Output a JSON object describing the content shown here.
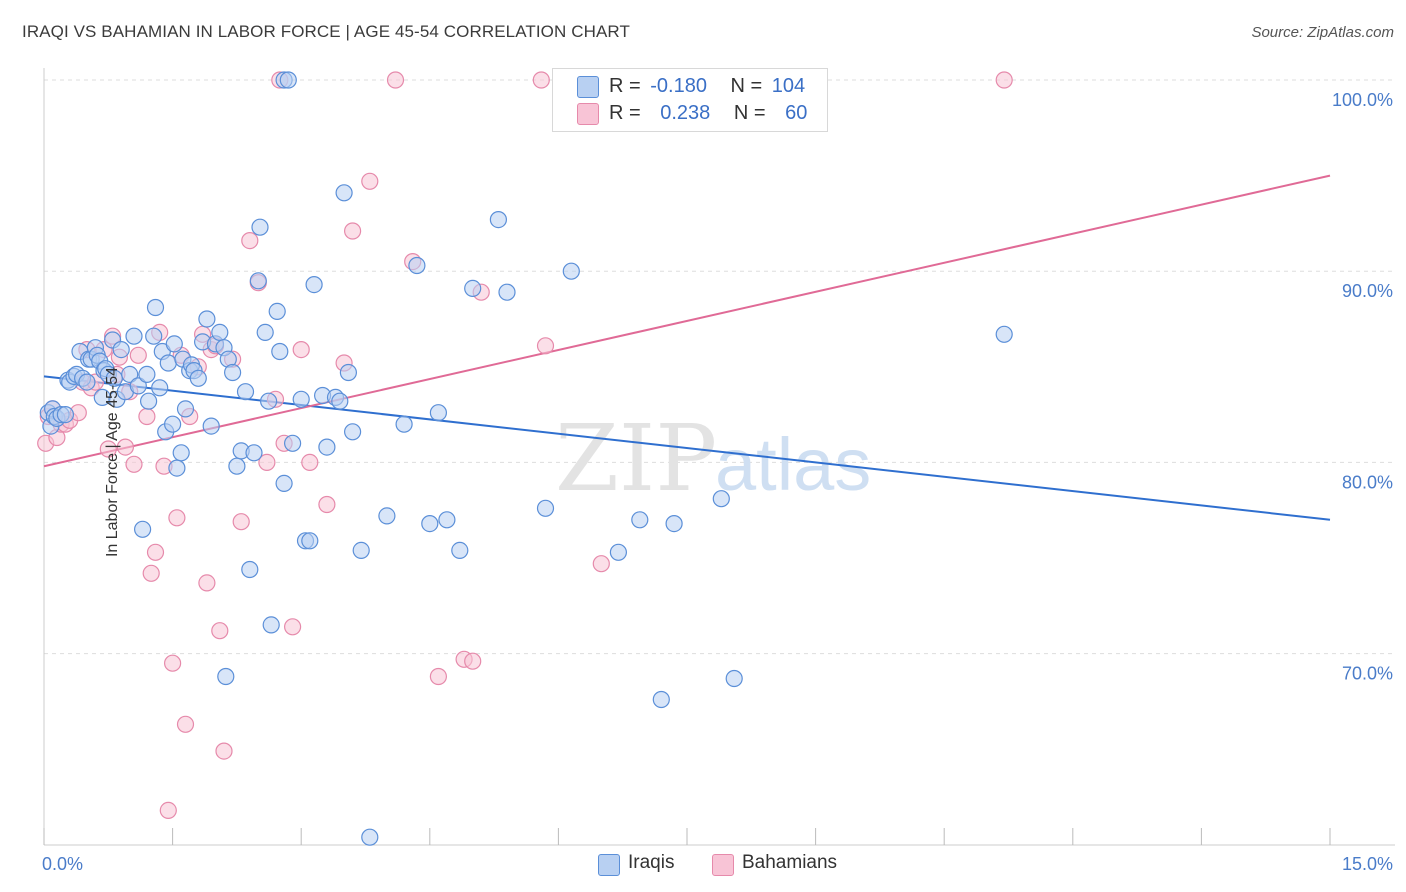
{
  "title": "IRAQI VS BAHAMIAN IN LABOR FORCE | AGE 45-54 CORRELATION CHART",
  "source": "Source: ZipAtlas.com",
  "watermark": {
    "zip": "ZIP",
    "atlas": "atlas"
  },
  "legend": {
    "iraqis": {
      "r_label": "R =",
      "r_value": "-0.180",
      "n_label": "N =",
      "n_value": "104"
    },
    "bahamians": {
      "r_label": "R =",
      "r_value": "0.238",
      "n_label": "N =",
      "n_value": "60"
    }
  },
  "bottom_legend": {
    "iraqis": "Iraqis",
    "bahamians": "Bahamians"
  },
  "colors": {
    "iraqis_fill": "#b8d0f2",
    "iraqis_stroke": "#5b8fd8",
    "iraqis_line": "#2f6fcf",
    "bahamians_fill": "#f8c4d6",
    "bahamians_stroke": "#e68aab",
    "bahamians_line": "#e06a96",
    "tick_text": "#4a7cc9",
    "grid": "#dddddd"
  },
  "chart_data": {
    "type": "scatter",
    "title": "IRAQI VS BAHAMIAN IN LABOR FORCE | AGE 45-54 CORRELATION CHART",
    "xlabel": "",
    "ylabel": "In Labor Force | Age 45-54",
    "xlim": [
      0,
      15
    ],
    "ylim": [
      60,
      100
    ],
    "x_tick_labels": [
      {
        "value": 0,
        "label": "0.0%"
      },
      {
        "value": 15,
        "label": "15.0%"
      }
    ],
    "y_tick_labels": [
      {
        "value": 100,
        "label": "100.0%"
      },
      {
        "value": 90,
        "label": "90.0%"
      },
      {
        "value": 80,
        "label": "80.0%"
      },
      {
        "value": 70,
        "label": "70.0%"
      }
    ],
    "series": [
      {
        "name": "Iraqis",
        "trend": {
          "x": [
            0,
            15
          ],
          "y": [
            84.5,
            77.0
          ]
        },
        "points": [
          [
            0.05,
            82.6
          ],
          [
            0.08,
            81.9
          ],
          [
            0.1,
            82.8
          ],
          [
            0.12,
            82.4
          ],
          [
            0.15,
            82.3
          ],
          [
            0.2,
            82.5
          ],
          [
            0.25,
            82.5
          ],
          [
            0.28,
            84.3
          ],
          [
            0.3,
            84.2
          ],
          [
            0.35,
            84.5
          ],
          [
            0.38,
            84.6
          ],
          [
            0.42,
            85.8
          ],
          [
            0.45,
            84.4
          ],
          [
            0.5,
            84.2
          ],
          [
            0.52,
            85.4
          ],
          [
            0.55,
            85.4
          ],
          [
            0.6,
            86.0
          ],
          [
            0.62,
            85.6
          ],
          [
            0.65,
            85.3
          ],
          [
            0.68,
            83.4
          ],
          [
            0.7,
            84.8
          ],
          [
            0.72,
            84.9
          ],
          [
            0.75,
            84.6
          ],
          [
            0.8,
            86.4
          ],
          [
            0.82,
            84.4
          ],
          [
            0.85,
            83.3
          ],
          [
            0.9,
            85.9
          ],
          [
            0.95,
            83.7
          ],
          [
            1.0,
            84.6
          ],
          [
            1.05,
            86.6
          ],
          [
            1.1,
            84.0
          ],
          [
            1.15,
            76.5
          ],
          [
            1.2,
            84.6
          ],
          [
            1.22,
            83.2
          ],
          [
            1.28,
            86.6
          ],
          [
            1.3,
            88.1
          ],
          [
            1.35,
            83.9
          ],
          [
            1.38,
            85.8
          ],
          [
            1.42,
            81.6
          ],
          [
            1.45,
            85.2
          ],
          [
            1.5,
            82.0
          ],
          [
            1.52,
            86.2
          ],
          [
            1.55,
            79.7
          ],
          [
            1.6,
            80.5
          ],
          [
            1.62,
            85.4
          ],
          [
            1.65,
            82.8
          ],
          [
            1.7,
            84.8
          ],
          [
            1.72,
            85.1
          ],
          [
            1.75,
            84.8
          ],
          [
            1.8,
            84.4
          ],
          [
            1.85,
            86.3
          ],
          [
            1.9,
            87.5
          ],
          [
            1.95,
            81.9
          ],
          [
            2.0,
            86.2
          ],
          [
            2.05,
            86.8
          ],
          [
            2.1,
            86.0
          ],
          [
            2.12,
            68.8
          ],
          [
            2.15,
            85.4
          ],
          [
            2.2,
            84.7
          ],
          [
            2.25,
            79.8
          ],
          [
            2.3,
            80.6
          ],
          [
            2.35,
            83.7
          ],
          [
            2.4,
            74.4
          ],
          [
            2.45,
            80.5
          ],
          [
            2.5,
            89.5
          ],
          [
            2.52,
            92.3
          ],
          [
            2.58,
            86.8
          ],
          [
            2.62,
            83.2
          ],
          [
            2.65,
            71.5
          ],
          [
            2.72,
            87.9
          ],
          [
            2.75,
            85.8
          ],
          [
            2.8,
            78.9
          ],
          [
            2.8,
            100.0
          ],
          [
            2.85,
            100.0
          ],
          [
            2.9,
            81.0
          ],
          [
            3.0,
            83.3
          ],
          [
            3.05,
            75.9
          ],
          [
            3.1,
            75.9
          ],
          [
            3.15,
            89.3
          ],
          [
            3.25,
            83.5
          ],
          [
            3.3,
            80.8
          ],
          [
            3.4,
            83.4
          ],
          [
            3.45,
            83.2
          ],
          [
            3.5,
            94.1
          ],
          [
            3.55,
            84.7
          ],
          [
            3.6,
            81.6
          ],
          [
            3.7,
            75.4
          ],
          [
            3.8,
            60.4
          ],
          [
            4.0,
            77.2
          ],
          [
            4.2,
            82.0
          ],
          [
            4.35,
            90.3
          ],
          [
            4.5,
            76.8
          ],
          [
            4.6,
            82.6
          ],
          [
            4.7,
            77.0
          ],
          [
            4.85,
            75.4
          ],
          [
            5.0,
            89.1
          ],
          [
            5.3,
            92.7
          ],
          [
            5.4,
            88.9
          ],
          [
            5.85,
            77.6
          ],
          [
            6.15,
            90.0
          ],
          [
            6.7,
            75.3
          ],
          [
            6.95,
            77.0
          ],
          [
            7.2,
            67.6
          ],
          [
            7.35,
            76.8
          ],
          [
            7.9,
            78.1
          ],
          [
            8.05,
            68.7
          ],
          [
            11.2,
            86.7
          ]
        ]
      },
      {
        "name": "Bahamians",
        "trend": {
          "x": [
            0,
            15
          ],
          "y": [
            79.8,
            95.0
          ]
        },
        "points": [
          [
            0.02,
            81.0
          ],
          [
            0.05,
            82.4
          ],
          [
            0.1,
            82.8
          ],
          [
            0.15,
            81.3
          ],
          [
            0.2,
            82.0
          ],
          [
            0.25,
            82.0
          ],
          [
            0.3,
            82.2
          ],
          [
            0.4,
            82.6
          ],
          [
            0.45,
            84.2
          ],
          [
            0.5,
            85.9
          ],
          [
            0.55,
            83.9
          ],
          [
            0.6,
            84.2
          ],
          [
            0.7,
            85.9
          ],
          [
            0.75,
            80.7
          ],
          [
            0.8,
            86.6
          ],
          [
            0.85,
            84.6
          ],
          [
            0.88,
            85.5
          ],
          [
            0.95,
            80.8
          ],
          [
            1.0,
            83.7
          ],
          [
            1.05,
            79.9
          ],
          [
            1.1,
            85.6
          ],
          [
            1.2,
            82.4
          ],
          [
            1.25,
            74.2
          ],
          [
            1.3,
            75.3
          ],
          [
            1.35,
            86.8
          ],
          [
            1.4,
            79.8
          ],
          [
            1.45,
            61.8
          ],
          [
            1.5,
            69.5
          ],
          [
            1.55,
            77.1
          ],
          [
            1.6,
            85.6
          ],
          [
            1.65,
            66.3
          ],
          [
            1.7,
            82.4
          ],
          [
            1.8,
            85.0
          ],
          [
            1.85,
            86.7
          ],
          [
            1.9,
            73.7
          ],
          [
            1.95,
            85.9
          ],
          [
            2.0,
            86.1
          ],
          [
            2.05,
            71.2
          ],
          [
            2.1,
            64.9
          ],
          [
            2.2,
            85.4
          ],
          [
            2.3,
            76.9
          ],
          [
            2.4,
            91.6
          ],
          [
            2.5,
            89.4
          ],
          [
            2.6,
            80.0
          ],
          [
            2.7,
            83.3
          ],
          [
            2.75,
            100.0
          ],
          [
            2.8,
            81.0
          ],
          [
            2.9,
            71.4
          ],
          [
            3.0,
            85.9
          ],
          [
            3.1,
            80.0
          ],
          [
            3.3,
            77.8
          ],
          [
            3.5,
            85.2
          ],
          [
            3.6,
            92.1
          ],
          [
            3.8,
            94.7
          ],
          [
            4.1,
            100.0
          ],
          [
            4.3,
            90.5
          ],
          [
            4.6,
            68.8
          ],
          [
            4.9,
            69.7
          ],
          [
            5.0,
            69.6
          ],
          [
            5.1,
            88.9
          ],
          [
            5.8,
            100.0
          ],
          [
            5.85,
            86.1
          ],
          [
            6.5,
            74.7
          ],
          [
            11.2,
            100.0
          ]
        ]
      }
    ]
  }
}
